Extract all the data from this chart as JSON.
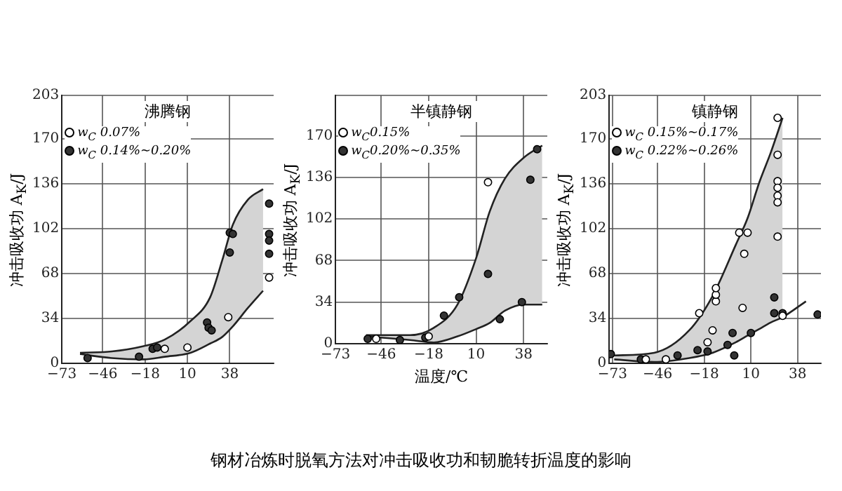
{
  "chart_data": [
    {
      "type": "scatter",
      "title": "沸腾钢",
      "ylabel": "冲击吸收功 A$_{K}$/J",
      "xlim": [
        -73,
        67
      ],
      "xticks": [
        -73,
        -46,
        -18,
        10,
        38
      ],
      "ylim": [
        0,
        203
      ],
      "yticks": [
        0,
        34,
        68,
        102,
        136,
        170,
        203
      ],
      "grid": true,
      "legend": "top left",
      "marker": "circle",
      "series": [
        {
          "type": "line",
          "color": "#222222",
          "marker": "none",
          "x": [
            -61,
            -40,
            -19,
            -5,
            12,
            25,
            33,
            40,
            50,
            60
          ],
          "values": [
            7,
            4,
            3,
            5,
            8,
            15,
            20,
            28,
            42,
            55
          ]
        },
        {
          "type": "area",
          "color": "#d4d4d4",
          "marker": "none",
          "x": [
            -61,
            -40,
            -19,
            -5,
            12,
            25,
            33,
            40,
            50,
            60
          ],
          "values": [
            8,
            9,
            13,
            18,
            32,
            50,
            78,
            105,
            124,
            132
          ]
        },
        {
          "name": "w$_{C}$ 0.07%",
          "color": "#ffffff",
          "x": [
            -5,
            10,
            37,
            64
          ],
          "values": [
            11,
            12,
            35,
            65
          ]
        },
        {
          "name": "w$_{C}$ 0.14%~0.20%",
          "color": "#333333",
          "x": [
            -56,
            -22,
            -13,
            -10,
            23,
            24,
            26,
            38,
            40,
            38,
            64,
            64,
            64,
            64
          ],
          "values": [
            4,
            5,
            11,
            12,
            31,
            27,
            25,
            99,
            98,
            84,
            121,
            98,
            93,
            83
          ]
        }
      ]
    },
    {
      "type": "scatter",
      "title": "半镇静钢",
      "xlabel": "温度/℃",
      "ylabel": "冲击吸收功 A$_{K}$/J",
      "xlim": [
        -73,
        52
      ],
      "xticks": [
        -73,
        -46,
        -18,
        10,
        38
      ],
      "ylim": [
        0,
        203
      ],
      "yticks": [
        0,
        34,
        68,
        102,
        136,
        170,
        {
          "value": 203,
          "label": null
        }
      ],
      "grid": true,
      "legend": "top left",
      "marker": "circle",
      "annotations": [
        "钢材冶炼时脱氧方法对冲击吸收功和韧脆转折温度的影响"
      ],
      "series": [
        {
          "type": "line",
          "color": "#222222",
          "marker": "none",
          "x": [
            -55,
            -29,
            -15,
            -1,
            10,
            18,
            27,
            38,
            49
          ],
          "values": [
            6,
            3,
            1,
            6,
            12,
            17,
            27,
            32,
            32
          ]
        },
        {
          "type": "area",
          "color": "#d4d4d4",
          "marker": "none",
          "x": [
            -55,
            -29,
            -15,
            -1,
            10,
            18,
            27,
            38,
            49
          ],
          "values": [
            7,
            7,
            13,
            32,
            70,
            108,
            135,
            152,
            162
          ]
        },
        {
          "name": "w$_{C}$0.15%",
          "color": "#ffffff",
          "x": [
            -49,
            -18,
            17
          ],
          "values": [
            4,
            6,
            132
          ]
        },
        {
          "name": "w$_{C}$0.20%~0.35%",
          "color": "#333333",
          "x": [
            -54,
            -35,
            -20,
            -9,
            0,
            17,
            24,
            37,
            42,
            46
          ],
          "values": [
            4,
            3,
            5,
            23,
            38,
            57,
            20,
            34,
            134,
            159
          ]
        }
      ]
    },
    {
      "type": "scatter",
      "title": "镇静钢",
      "ylabel": "冲击吸收功 A$_{K}$/J",
      "xlim": [
        -75,
        52
      ],
      "xticks": [
        -73,
        -46,
        -18,
        10,
        38
      ],
      "ylim": [
        0,
        203
      ],
      "yticks": [
        0,
        34,
        68,
        102,
        136,
        170,
        203
      ],
      "grid": true,
      "legend": "top left",
      "marker": "circle",
      "series": [
        {
          "type": "line",
          "color": "#222222",
          "marker": "none",
          "x": [
            -72,
            -48,
            -27,
            -13,
            1,
            8,
            15,
            22,
            29,
            43
          ],
          "values": [
            3,
            1,
            4,
            8,
            16,
            21,
            26,
            31,
            35,
            47
          ]
        },
        {
          "type": "area",
          "color": "#d4d4d4",
          "marker": "none",
          "x": [
            -72,
            -48,
            -27,
            -13,
            1,
            8,
            15,
            22,
            29
          ],
          "values": [
            6,
            8,
            25,
            51,
            90,
            110,
            137,
            160,
            186
          ]
        },
        {
          "name": "w$_{C}$ 0.15%~0.17%",
          "color": "#ffffff",
          "x": [
            -53,
            -41,
            -16,
            -21,
            -13,
            -11,
            -11,
            -11,
            3,
            8,
            6,
            5,
            26,
            26,
            26,
            26,
            26,
            26,
            26,
            29
          ],
          "values": [
            3,
            3,
            16,
            38,
            25,
            47,
            52,
            57,
            99,
            99,
            83,
            42,
            186,
            158,
            138,
            133,
            127,
            122,
            96,
            36
          ]
        },
        {
          "name": "w$_{C}$ 0.22%~0.26%",
          "color": "#333333",
          "x": [
            -74,
            -56,
            -34,
            -22,
            -16,
            -4,
            -1,
            0,
            10,
            24,
            24,
            29,
            50
          ],
          "values": [
            7,
            3,
            6,
            10,
            9,
            14,
            23,
            6,
            23,
            50,
            38,
            38,
            37
          ]
        }
      ]
    }
  ]
}
